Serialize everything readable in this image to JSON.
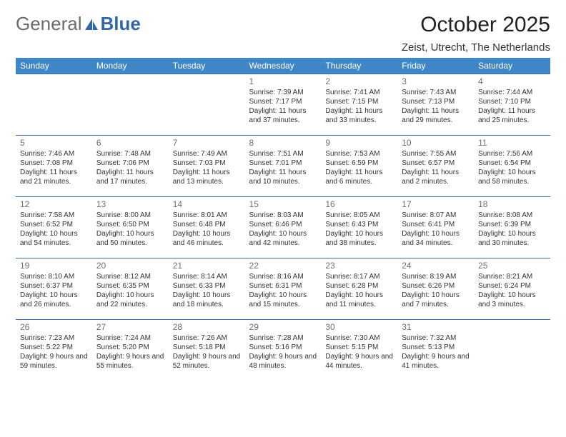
{
  "brand": {
    "part1": "General",
    "part2": "Blue"
  },
  "title": "October 2025",
  "subtitle": "Zeist, Utrecht, The Netherlands",
  "colors": {
    "header_bg": "#3f86c6",
    "header_text": "#ffffff",
    "cell_border": "#3f6fa0",
    "daynum": "#707070",
    "body_text": "#333333",
    "brand_gray": "#6b6b6b",
    "brand_blue": "#2f69a8"
  },
  "day_headers": [
    "Sunday",
    "Monday",
    "Tuesday",
    "Wednesday",
    "Thursday",
    "Friday",
    "Saturday"
  ],
  "weeks": [
    [
      null,
      null,
      null,
      {
        "d": "1",
        "sr": "7:39 AM",
        "ss": "7:17 PM",
        "dl": "11 hours and 37 minutes."
      },
      {
        "d": "2",
        "sr": "7:41 AM",
        "ss": "7:15 PM",
        "dl": "11 hours and 33 minutes."
      },
      {
        "d": "3",
        "sr": "7:43 AM",
        "ss": "7:13 PM",
        "dl": "11 hours and 29 minutes."
      },
      {
        "d": "4",
        "sr": "7:44 AM",
        "ss": "7:10 PM",
        "dl": "11 hours and 25 minutes."
      }
    ],
    [
      {
        "d": "5",
        "sr": "7:46 AM",
        "ss": "7:08 PM",
        "dl": "11 hours and 21 minutes."
      },
      {
        "d": "6",
        "sr": "7:48 AM",
        "ss": "7:06 PM",
        "dl": "11 hours and 17 minutes."
      },
      {
        "d": "7",
        "sr": "7:49 AM",
        "ss": "7:03 PM",
        "dl": "11 hours and 13 minutes."
      },
      {
        "d": "8",
        "sr": "7:51 AM",
        "ss": "7:01 PM",
        "dl": "11 hours and 10 minutes."
      },
      {
        "d": "9",
        "sr": "7:53 AM",
        "ss": "6:59 PM",
        "dl": "11 hours and 6 minutes."
      },
      {
        "d": "10",
        "sr": "7:55 AM",
        "ss": "6:57 PM",
        "dl": "11 hours and 2 minutes."
      },
      {
        "d": "11",
        "sr": "7:56 AM",
        "ss": "6:54 PM",
        "dl": "10 hours and 58 minutes."
      }
    ],
    [
      {
        "d": "12",
        "sr": "7:58 AM",
        "ss": "6:52 PM",
        "dl": "10 hours and 54 minutes."
      },
      {
        "d": "13",
        "sr": "8:00 AM",
        "ss": "6:50 PM",
        "dl": "10 hours and 50 minutes."
      },
      {
        "d": "14",
        "sr": "8:01 AM",
        "ss": "6:48 PM",
        "dl": "10 hours and 46 minutes."
      },
      {
        "d": "15",
        "sr": "8:03 AM",
        "ss": "6:46 PM",
        "dl": "10 hours and 42 minutes."
      },
      {
        "d": "16",
        "sr": "8:05 AM",
        "ss": "6:43 PM",
        "dl": "10 hours and 38 minutes."
      },
      {
        "d": "17",
        "sr": "8:07 AM",
        "ss": "6:41 PM",
        "dl": "10 hours and 34 minutes."
      },
      {
        "d": "18",
        "sr": "8:08 AM",
        "ss": "6:39 PM",
        "dl": "10 hours and 30 minutes."
      }
    ],
    [
      {
        "d": "19",
        "sr": "8:10 AM",
        "ss": "6:37 PM",
        "dl": "10 hours and 26 minutes."
      },
      {
        "d": "20",
        "sr": "8:12 AM",
        "ss": "6:35 PM",
        "dl": "10 hours and 22 minutes."
      },
      {
        "d": "21",
        "sr": "8:14 AM",
        "ss": "6:33 PM",
        "dl": "10 hours and 18 minutes."
      },
      {
        "d": "22",
        "sr": "8:16 AM",
        "ss": "6:31 PM",
        "dl": "10 hours and 15 minutes."
      },
      {
        "d": "23",
        "sr": "8:17 AM",
        "ss": "6:28 PM",
        "dl": "10 hours and 11 minutes."
      },
      {
        "d": "24",
        "sr": "8:19 AM",
        "ss": "6:26 PM",
        "dl": "10 hours and 7 minutes."
      },
      {
        "d": "25",
        "sr": "8:21 AM",
        "ss": "6:24 PM",
        "dl": "10 hours and 3 minutes."
      }
    ],
    [
      {
        "d": "26",
        "sr": "7:23 AM",
        "ss": "5:22 PM",
        "dl": "9 hours and 59 minutes."
      },
      {
        "d": "27",
        "sr": "7:24 AM",
        "ss": "5:20 PM",
        "dl": "9 hours and 55 minutes."
      },
      {
        "d": "28",
        "sr": "7:26 AM",
        "ss": "5:18 PM",
        "dl": "9 hours and 52 minutes."
      },
      {
        "d": "29",
        "sr": "7:28 AM",
        "ss": "5:16 PM",
        "dl": "9 hours and 48 minutes."
      },
      {
        "d": "30",
        "sr": "7:30 AM",
        "ss": "5:15 PM",
        "dl": "9 hours and 44 minutes."
      },
      {
        "d": "31",
        "sr": "7:32 AM",
        "ss": "5:13 PM",
        "dl": "9 hours and 41 minutes."
      },
      null
    ]
  ],
  "labels": {
    "sunrise": "Sunrise: ",
    "sunset": "Sunset: ",
    "daylight": "Daylight: "
  }
}
